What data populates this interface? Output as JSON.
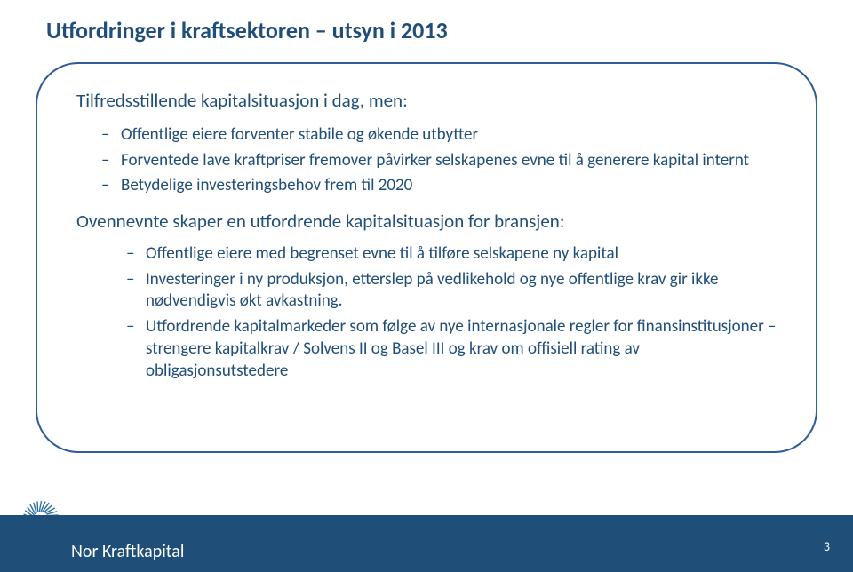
{
  "title": "Utfordringer i kraftsektoren – utsyn i 2013",
  "intro": "Tilfredsstillende kapitalsituasjon i dag, men:",
  "bullets1": [
    "Offentlige eiere forventer stabile og økende utbytter",
    "Forventede lave kraftpriser fremover påvirker selskapenes evne til å generere kapital internt",
    "Betydelige investeringsbehov frem til 2020"
  ],
  "midline": "Ovennevnte skaper en utfordrende kapitalsituasjon for bransjen:",
  "bullets2": [
    "Offentlige eiere med begrenset evne til å tilføre selskapene ny kapital",
    "Investeringer i ny produksjon, etterslep på vedlikehold og nye offentlige krav gir ikke nødvendigvis økt avkastning.",
    "Utfordrende kapitalmarkeder som følge av nye internasjonale regler for finansinstitusjoner – strengere kapitalkrav / Solvens II og Basel III og krav om offisiell rating av obligasjonsutstedere"
  ],
  "brand": "Nor Kraftkapital",
  "pageNumber": "3",
  "colors": {
    "heading": "#1f4e79",
    "border": "#2e5b9a",
    "footer": "#1f4e79",
    "logoLight": "#a9d4e8",
    "logoDark": "#2b6fa3"
  }
}
